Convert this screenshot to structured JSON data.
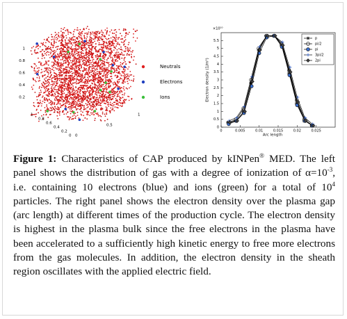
{
  "left_panel": {
    "legend": [
      {
        "label": "Neutrals",
        "color": "#e02020"
      },
      {
        "label": "Electrons",
        "color": "#1f3fbf"
      },
      {
        "label": "Ions",
        "color": "#3cbf3c"
      }
    ],
    "z_ticks": [
      "1",
      "0.8",
      "0.6",
      "0.4",
      "0.2"
    ],
    "x_ticks": [
      "1",
      "0.8",
      "0.6",
      "0.4",
      "0.2",
      "0"
    ],
    "y_ticks": [
      "0",
      "0.5",
      "1"
    ]
  },
  "chart_data": {
    "type": "line",
    "y_scale_label": "×10¹⁰",
    "y_label": "Electron density (1/m³)",
    "x_label": "Arc length",
    "xlim": [
      0,
      0.03
    ],
    "ylim": [
      0,
      6
    ],
    "xticks": [
      0,
      0.005,
      0.01,
      0.015,
      0.02,
      0.025
    ],
    "yticks": [
      0,
      0.5,
      1,
      1.5,
      2,
      2.5,
      3,
      3.5,
      4,
      4.5,
      5,
      5.5
    ],
    "x": [
      0.002,
      0.004,
      0.006,
      0.008,
      0.01,
      0.012,
      0.014,
      0.016,
      0.018,
      0.02,
      0.022,
      0.024
    ],
    "series": [
      {
        "name": "p",
        "color": "#000000",
        "marker": "star",
        "values": [
          0.3,
          0.4,
          1.0,
          2.8,
          4.9,
          5.8,
          5.8,
          5.2,
          3.4,
          1.5,
          0.4,
          0.1
        ]
      },
      {
        "name": "pi/2",
        "color": "#000000",
        "marker": "circle",
        "values": [
          0.3,
          0.5,
          1.2,
          3.0,
          5.0,
          5.8,
          5.8,
          5.3,
          3.6,
          1.7,
          0.5,
          0.1
        ]
      },
      {
        "name": "pi",
        "color": "#000000",
        "marker": "circle-dot",
        "values": [
          0.2,
          0.4,
          0.9,
          2.6,
          4.7,
          5.7,
          5.8,
          5.1,
          3.3,
          1.4,
          0.4,
          0.1
        ]
      },
      {
        "name": "3pi/2",
        "color": "#000000",
        "marker": "plus",
        "values": [
          0.4,
          0.6,
          1.3,
          3.2,
          5.1,
          5.8,
          5.8,
          5.4,
          3.8,
          1.9,
          0.6,
          0.2
        ]
      },
      {
        "name": "2pi",
        "color": "#000000",
        "marker": "diamond",
        "values": [
          0.3,
          0.4,
          1.0,
          2.9,
          4.9,
          5.8,
          5.8,
          5.2,
          3.5,
          1.6,
          0.4,
          0.1
        ]
      }
    ]
  },
  "caption": {
    "label": "Figure 1:",
    "text_1": " Characteristics of CAP produced by kINPen",
    "sup_1": "®",
    "text_2": " MED. The left panel shows the distribution of gas with a degree of ionization of α=10",
    "sup_2": "-3",
    "text_3": ", i.e. containing 10 electrons (blue) and ions (green) for a total of 10",
    "sup_3": "4",
    "text_4": " particles. The right panel shows the electron density over the plasma gap (arc length) at different times of the production cycle. The electron density is highest in the plasma bulk since the free electrons in the plasma have been accelerated to a sufficiently high kinetic energy to free more electrons from the gas molecules. In addition, the electron density in the sheath region oscillates with the applied electric field."
  }
}
